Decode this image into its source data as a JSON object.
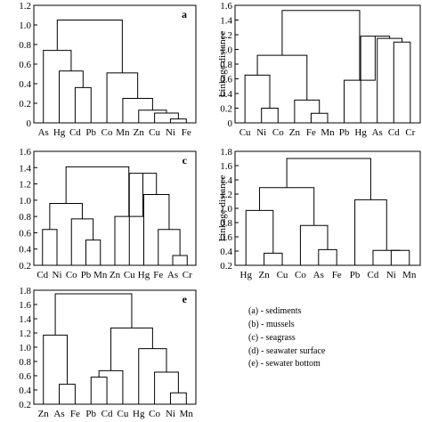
{
  "chart_data": [
    {
      "type": "dendrogram",
      "panel_label": "a",
      "ylabel": "",
      "ylim": [
        0,
        1.2
      ],
      "yticks": [
        "0",
        "0.2",
        "0.4",
        "0.6",
        "0.8",
        "1.0",
        "1.2"
      ],
      "leaves": [
        "As",
        "Hg",
        "Cd",
        "Pb",
        "Co",
        "Mn",
        "Zn",
        "Cu",
        "Ni",
        "Fe"
      ],
      "merges": [
        {
          "a": "L8",
          "b": "L9",
          "h": 0.04
        },
        {
          "a": "L7",
          "b": "M0",
          "h": 0.1
        },
        {
          "a": "L6",
          "b": "M1",
          "h": 0.13
        },
        {
          "a": "L5",
          "b": "M2",
          "h": 0.25
        },
        {
          "a": "L2",
          "b": "L3",
          "h": 0.36
        },
        {
          "a": "L4",
          "b": "M3",
          "h": 0.51
        },
        {
          "a": "L1",
          "b": "M4",
          "h": 0.53
        },
        {
          "a": "L0",
          "b": "M6",
          "h": 0.74
        },
        {
          "a": "M7",
          "b": "M5",
          "h": 1.05
        }
      ]
    },
    {
      "type": "dendrogram",
      "panel_label": "",
      "ylabel": "Linkage distance",
      "ylim": [
        0,
        1.6
      ],
      "yticks": [
        "0",
        "0.2",
        "0.4",
        "0.6",
        "0.8",
        "1.0",
        "1.2",
        "1.4",
        "1.6"
      ],
      "leaves": [
        "Cu",
        "Ni",
        "Co",
        "Zn",
        "Fe",
        "Mn",
        "Pb",
        "Hg",
        "As",
        "Cd",
        "Cr"
      ],
      "merges": [
        {
          "a": "L1",
          "b": "L2",
          "h": 0.2
        },
        {
          "a": "L4",
          "b": "L5",
          "h": 0.13
        },
        {
          "a": "L3",
          "b": "M1",
          "h": 0.31
        },
        {
          "a": "L0",
          "b": "M0",
          "h": 0.65
        },
        {
          "a": "M3",
          "b": "M2",
          "h": 0.92
        },
        {
          "a": "L9",
          "b": "L10",
          "h": 1.1
        },
        {
          "a": "L8",
          "b": "M5",
          "h": 1.15
        },
        {
          "a": "L7",
          "b": "M6",
          "h": 1.18
        },
        {
          "a": "L6",
          "b": "M7",
          "h": 0.58
        },
        {
          "a": "M4",
          "b": "M8",
          "h": 1.53
        }
      ]
    },
    {
      "type": "dendrogram",
      "panel_label": "c",
      "ylabel": "",
      "ylim": [
        0.2,
        1.6
      ],
      "yticks": [
        "0.2",
        "0.4",
        "0.6",
        "0.8",
        "1.0",
        "1.2",
        "1.4",
        "1.6"
      ],
      "leaves": [
        "Cd",
        "Ni",
        "Co",
        "Pb",
        "Mn",
        "Zn",
        "Cu",
        "Hg",
        "Fe",
        "As",
        "Cr"
      ],
      "merges": [
        {
          "a": "L3",
          "b": "L4",
          "h": 0.51
        },
        {
          "a": "L2",
          "b": "M0",
          "h": 0.77
        },
        {
          "a": "L0",
          "b": "L1",
          "h": 0.64
        },
        {
          "a": "M2",
          "b": "M1",
          "h": 0.96
        },
        {
          "a": "L9",
          "b": "L10",
          "h": 0.32
        },
        {
          "a": "L8",
          "b": "M4",
          "h": 0.64
        },
        {
          "a": "L7",
          "b": "M5",
          "h": 1.07
        },
        {
          "a": "L6",
          "b": "M6",
          "h": 1.33
        },
        {
          "a": "L5",
          "b": "M7",
          "h": 0.8
        },
        {
          "a": "M3",
          "b": "M8",
          "h": 1.41
        }
      ]
    },
    {
      "type": "dendrogram",
      "panel_label": "",
      "ylabel": "Linkage distance",
      "ylim": [
        0.2,
        1.8
      ],
      "yticks": [
        "0.2",
        "0.4",
        "0.6",
        "0.8",
        "1.0",
        "1.2",
        "1.4",
        "1.6",
        "1.8"
      ],
      "leaves": [
        "Hg",
        "Zn",
        "Cu",
        "Co",
        "As",
        "Fe",
        "Pb",
        "Cd",
        "Ni",
        "Mn"
      ],
      "merges": [
        {
          "a": "L1",
          "b": "L2",
          "h": 0.37
        },
        {
          "a": "L0",
          "b": "M0",
          "h": 0.97
        },
        {
          "a": "L4",
          "b": "L5",
          "h": 0.42
        },
        {
          "a": "L3",
          "b": "M2",
          "h": 0.76
        },
        {
          "a": "M1",
          "b": "M3",
          "h": 1.29
        },
        {
          "a": "L8",
          "b": "L9",
          "h": 0.41
        },
        {
          "a": "L7",
          "b": "M5",
          "h": 0.41
        },
        {
          "a": "L6",
          "b": "M6",
          "h": 1.12
        },
        {
          "a": "M4",
          "b": "M7",
          "h": 1.7
        }
      ]
    },
    {
      "type": "dendrogram",
      "panel_label": "e",
      "ylabel": "",
      "ylim": [
        0.2,
        1.8
      ],
      "yticks": [
        "0.2",
        "0.4",
        "0.6",
        "0.8",
        "1.0",
        "1.2",
        "1.4",
        "1.6",
        "1.8"
      ],
      "leaves": [
        "Zn",
        "As",
        "Fe",
        "Pb",
        "Cd",
        "Cu",
        "Hg",
        "Co",
        "Ni",
        "Mn"
      ],
      "merges": [
        {
          "a": "L1",
          "b": "L2",
          "h": 0.48
        },
        {
          "a": "L0",
          "b": "M0",
          "h": 1.17
        },
        {
          "a": "L3",
          "b": "L4",
          "h": 0.58
        },
        {
          "a": "M2",
          "b": "L5",
          "h": 0.67
        },
        {
          "a": "L8",
          "b": "L9",
          "h": 0.36
        },
        {
          "a": "L7",
          "b": "M4",
          "h": 0.65
        },
        {
          "a": "L6",
          "b": "M5",
          "h": 0.98
        },
        {
          "a": "M3",
          "b": "M6",
          "h": 1.27
        },
        {
          "a": "M1",
          "b": "M7",
          "h": 1.75
        }
      ]
    }
  ],
  "legend": [
    "(a) - sediments",
    "(b) - mussels",
    "(c) - seagrass",
    "(d) - seawater surface",
    "(e) - sewater bottom"
  ],
  "colors": {
    "line": "#000000",
    "background": "#ffffff"
  }
}
